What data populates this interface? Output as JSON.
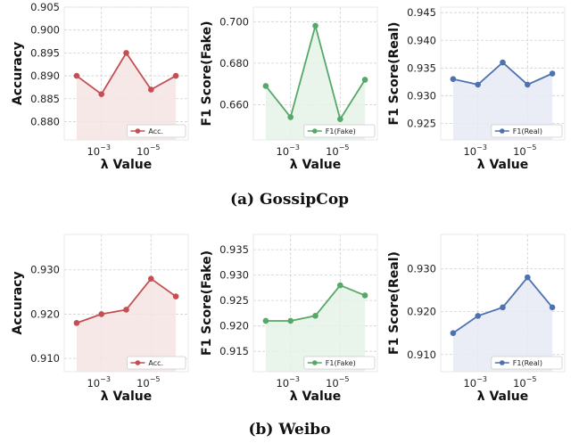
{
  "captions": {
    "a": "(a) GossipCop",
    "b": "(b) Weibo"
  },
  "chart_data": [
    {
      "type": "line",
      "panel": "gossipcop-accuracy",
      "x": [
        0.01,
        0.001,
        0.0001,
        1e-05,
        1e-06
      ],
      "x_scale": "log-reversed",
      "xticks": [
        0.001,
        1e-05
      ],
      "xtick_labels": [
        "10",
        "10"
      ],
      "xtick_exps": [
        "−3",
        "−5"
      ],
      "xlabel": "λ Value",
      "ylabel": "Accuracy",
      "ylim": [
        0.876,
        0.905
      ],
      "yticks": [
        0.88,
        0.885,
        0.89,
        0.895,
        0.9,
        0.905
      ],
      "ytick_labels": [
        "0.880",
        "0.885",
        "0.890",
        "0.895",
        "0.900",
        "0.905"
      ],
      "series": [
        {
          "name": "Acc.",
          "color": "#c44e52",
          "fill": "#f6e4e4",
          "values": [
            0.89,
            0.886,
            0.895,
            0.887,
            0.89
          ]
        }
      ],
      "legend": "bottom-right",
      "grid": true
    },
    {
      "type": "line",
      "panel": "gossipcop-f1-fake",
      "x": [
        0.01,
        0.001,
        0.0001,
        1e-05,
        1e-06
      ],
      "x_scale": "log-reversed",
      "xticks": [
        0.001,
        1e-05
      ],
      "xtick_labels": [
        "10",
        "10"
      ],
      "xtick_exps": [
        "−3",
        "−5"
      ],
      "xlabel": "λ Value",
      "ylabel": "F1 Score(Fake)",
      "ylim": [
        0.643,
        0.707
      ],
      "yticks": [
        0.66,
        0.68,
        0.7
      ],
      "ytick_labels": [
        "0.660",
        "0.680",
        "0.700"
      ],
      "series": [
        {
          "name": "F1(Fake)",
          "color": "#55a868",
          "fill": "#e5f2e7",
          "values": [
            0.669,
            0.654,
            0.698,
            0.653,
            0.672
          ]
        }
      ],
      "legend": "bottom-right",
      "grid": true
    },
    {
      "type": "line",
      "panel": "gossipcop-f1-real",
      "x": [
        0.01,
        0.001,
        0.0001,
        1e-05,
        1e-06
      ],
      "x_scale": "log-reversed",
      "xticks": [
        0.001,
        1e-05
      ],
      "xtick_labels": [
        "10",
        "10"
      ],
      "xtick_exps": [
        "−3",
        "−5"
      ],
      "xlabel": "λ Value",
      "ylabel": "F1 Score(Real)",
      "ylim": [
        0.922,
        0.946
      ],
      "yticks": [
        0.925,
        0.93,
        0.935,
        0.94,
        0.945
      ],
      "ytick_labels": [
        "0.925",
        "0.930",
        "0.935",
        "0.940",
        "0.945"
      ],
      "series": [
        {
          "name": "F1(Real)",
          "color": "#4c72b0",
          "fill": "#e6e9f5",
          "values": [
            0.933,
            0.932,
            0.936,
            0.932,
            0.934
          ]
        }
      ],
      "legend": "bottom-right",
      "grid": true
    },
    {
      "type": "line",
      "panel": "weibo-accuracy",
      "x": [
        0.01,
        0.001,
        0.0001,
        1e-05,
        1e-06
      ],
      "x_scale": "log-reversed",
      "xticks": [
        0.001,
        1e-05
      ],
      "xtick_labels": [
        "10",
        "10"
      ],
      "xtick_exps": [
        "−3",
        "−5"
      ],
      "xlabel": "λ Value",
      "ylabel": "Accuracy",
      "ylim": [
        0.907,
        0.938
      ],
      "yticks": [
        0.91,
        0.92,
        0.93
      ],
      "ytick_labels": [
        "0.910",
        "0.920",
        "0.930"
      ],
      "series": [
        {
          "name": "Acc.",
          "color": "#c44e52",
          "fill": "#f6e4e4",
          "values": [
            0.918,
            0.92,
            0.921,
            0.928,
            0.924
          ]
        }
      ],
      "legend": "bottom-right",
      "grid": true
    },
    {
      "type": "line",
      "panel": "weibo-f1-fake",
      "x": [
        0.01,
        0.001,
        0.0001,
        1e-05,
        1e-06
      ],
      "x_scale": "log-reversed",
      "xticks": [
        0.001,
        1e-05
      ],
      "xtick_labels": [
        "10",
        "10"
      ],
      "xtick_exps": [
        "−3",
        "−5"
      ],
      "xlabel": "λ Value",
      "ylabel": "F1 Score(Fake)",
      "ylim": [
        0.911,
        0.938
      ],
      "yticks": [
        0.915,
        0.92,
        0.925,
        0.93,
        0.935
      ],
      "ytick_labels": [
        "0.915",
        "0.920",
        "0.925",
        "0.930",
        "0.935"
      ],
      "series": [
        {
          "name": "F1(Fake)",
          "color": "#55a868",
          "fill": "#e5f2e7",
          "values": [
            0.921,
            0.921,
            0.922,
            0.928,
            0.926
          ]
        }
      ],
      "legend": "bottom-right",
      "grid": true
    },
    {
      "type": "line",
      "panel": "weibo-f1-real",
      "x": [
        0.01,
        0.001,
        0.0001,
        1e-05,
        1e-06
      ],
      "x_scale": "log-reversed",
      "xticks": [
        0.001,
        1e-05
      ],
      "xtick_labels": [
        "10",
        "10"
      ],
      "xtick_exps": [
        "−3",
        "−5"
      ],
      "xlabel": "λ Value",
      "ylabel": "F1 Score(Real)",
      "ylim": [
        0.906,
        0.938
      ],
      "yticks": [
        0.91,
        0.92,
        0.93
      ],
      "ytick_labels": [
        "0.910",
        "0.920",
        "0.930"
      ],
      "series": [
        {
          "name": "F1(Real)",
          "color": "#4c72b0",
          "fill": "#e6e9f5",
          "values": [
            0.915,
            0.919,
            0.921,
            0.928,
            0.921
          ]
        }
      ],
      "legend": "bottom-right",
      "grid": true
    }
  ]
}
